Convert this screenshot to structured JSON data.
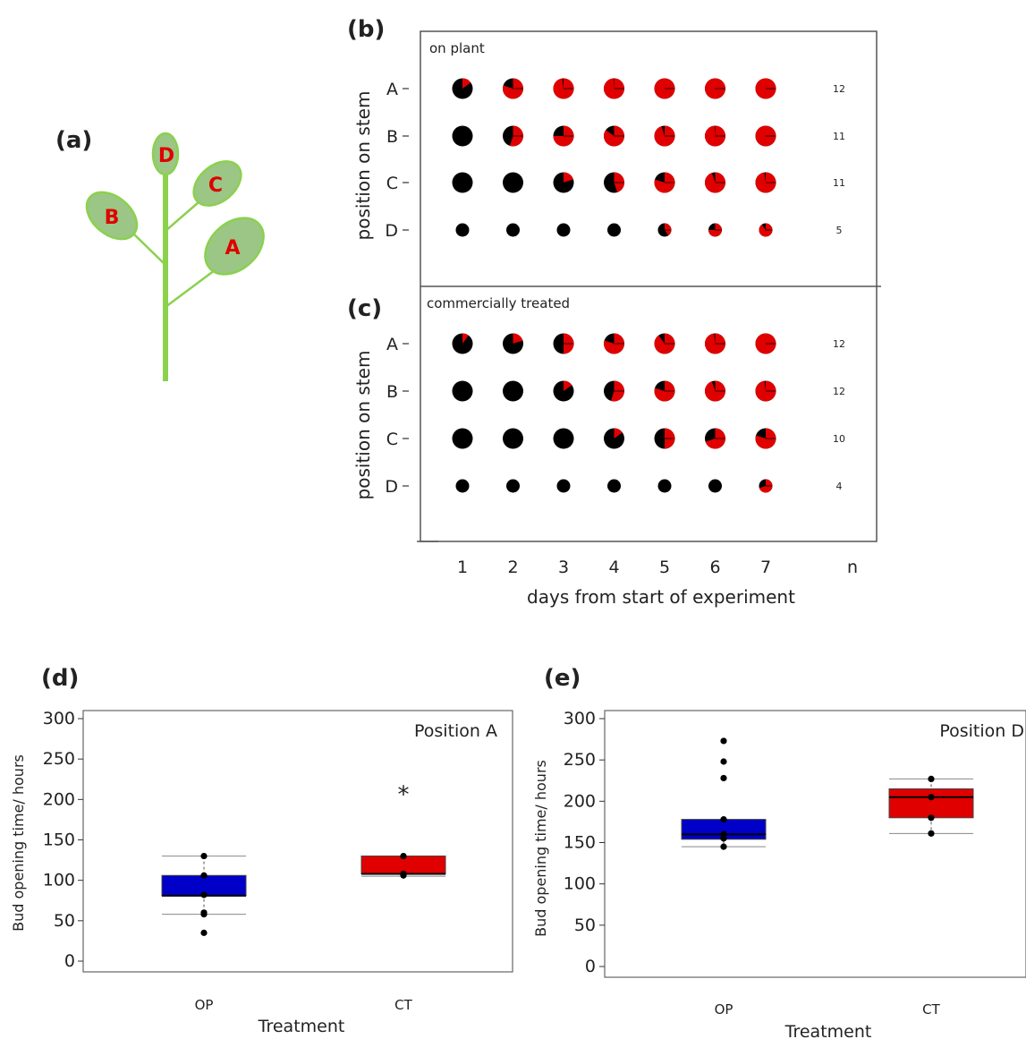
{
  "panel_labels": {
    "a": "(a)",
    "b": "(b)",
    "c": "(c)",
    "d": "(d)",
    "e": "(e)"
  },
  "plant_diagram": {
    "leaves": [
      "A",
      "B",
      "C",
      "D"
    ]
  },
  "chart_data": [
    {
      "id": "b",
      "type": "pie-grid",
      "panel_title": "on plant",
      "ylabel": "position on stem",
      "xlabel": "days from start of experiment",
      "x": [
        1,
        2,
        3,
        4,
        5,
        6,
        7
      ],
      "rows": [
        "A",
        "B",
        "C",
        "D"
      ],
      "n_label": "n",
      "n": [
        12,
        11,
        11,
        5
      ],
      "open_fraction": [
        [
          0.15,
          0.8,
          0.98,
          0.99,
          1.0,
          1.0,
          1.0
        ],
        [
          0.0,
          0.55,
          0.75,
          0.85,
          0.95,
          0.99,
          1.0
        ],
        [
          0.0,
          0.0,
          0.2,
          0.45,
          0.8,
          0.95,
          0.98
        ],
        [
          0.0,
          0.0,
          0.0,
          0.0,
          0.4,
          0.75,
          0.9
        ]
      ],
      "colors": {
        "open": "#e00000",
        "closed": "#000000"
      }
    },
    {
      "id": "c",
      "type": "pie-grid",
      "panel_title": "commercially treated",
      "ylabel": "position on stem",
      "xlabel": "days from start of experiment",
      "x": [
        1,
        2,
        3,
        4,
        5,
        6,
        7
      ],
      "rows": [
        "A",
        "B",
        "C",
        "D"
      ],
      "n_label": "n",
      "n": [
        12,
        12,
        10,
        4
      ],
      "open_fraction": [
        [
          0.1,
          0.2,
          0.5,
          0.8,
          0.9,
          0.98,
          1.0
        ],
        [
          0.0,
          0.0,
          0.15,
          0.55,
          0.8,
          0.95,
          0.98
        ],
        [
          0.0,
          0.0,
          0.0,
          0.15,
          0.5,
          0.7,
          0.8
        ],
        [
          0.0,
          0.0,
          0.0,
          0.0,
          0.0,
          0.0,
          0.7
        ]
      ],
      "colors": {
        "open": "#e00000",
        "closed": "#000000"
      }
    },
    {
      "id": "d",
      "type": "box",
      "panel_title": "Position A",
      "ylabel": "Bud opening time/ hours",
      "xlabel": "Treatment",
      "categories": [
        "OP",
        "CT"
      ],
      "ylim": [
        0,
        300
      ],
      "yticks": [
        0,
        50,
        100,
        150,
        200,
        250,
        300
      ],
      "boxes": [
        {
          "min": 58,
          "q1": 81,
          "median": 81,
          "q3": 106,
          "max": 130,
          "color": "#0000c8",
          "points": [
            35,
            58,
            60,
            82,
            106,
            130
          ]
        },
        {
          "min": 105,
          "q1": 108,
          "median": 108,
          "q3": 130,
          "max": 130,
          "color": "#e00000",
          "points": [
            106,
            108,
            130
          ]
        }
      ],
      "annotation": "*",
      "annotation_value": 210
    },
    {
      "id": "e",
      "type": "box",
      "panel_title": "Position D",
      "ylabel": "Bud opening time/ hours",
      "xlabel": "Treatment",
      "categories": [
        "OP",
        "CT"
      ],
      "ylim": [
        0,
        300
      ],
      "yticks": [
        0,
        50,
        100,
        150,
        200,
        250,
        300
      ],
      "boxes": [
        {
          "min": 145,
          "q1": 154,
          "median": 160,
          "q3": 178,
          "max": 178,
          "color": "#0000c8",
          "points": [
            145,
            155,
            160,
            178,
            228,
            248,
            273
          ]
        },
        {
          "min": 161,
          "q1": 180,
          "median": 205,
          "q3": 215,
          "max": 227,
          "color": "#e00000",
          "points": [
            161,
            180,
            205,
            227
          ]
        }
      ]
    }
  ]
}
